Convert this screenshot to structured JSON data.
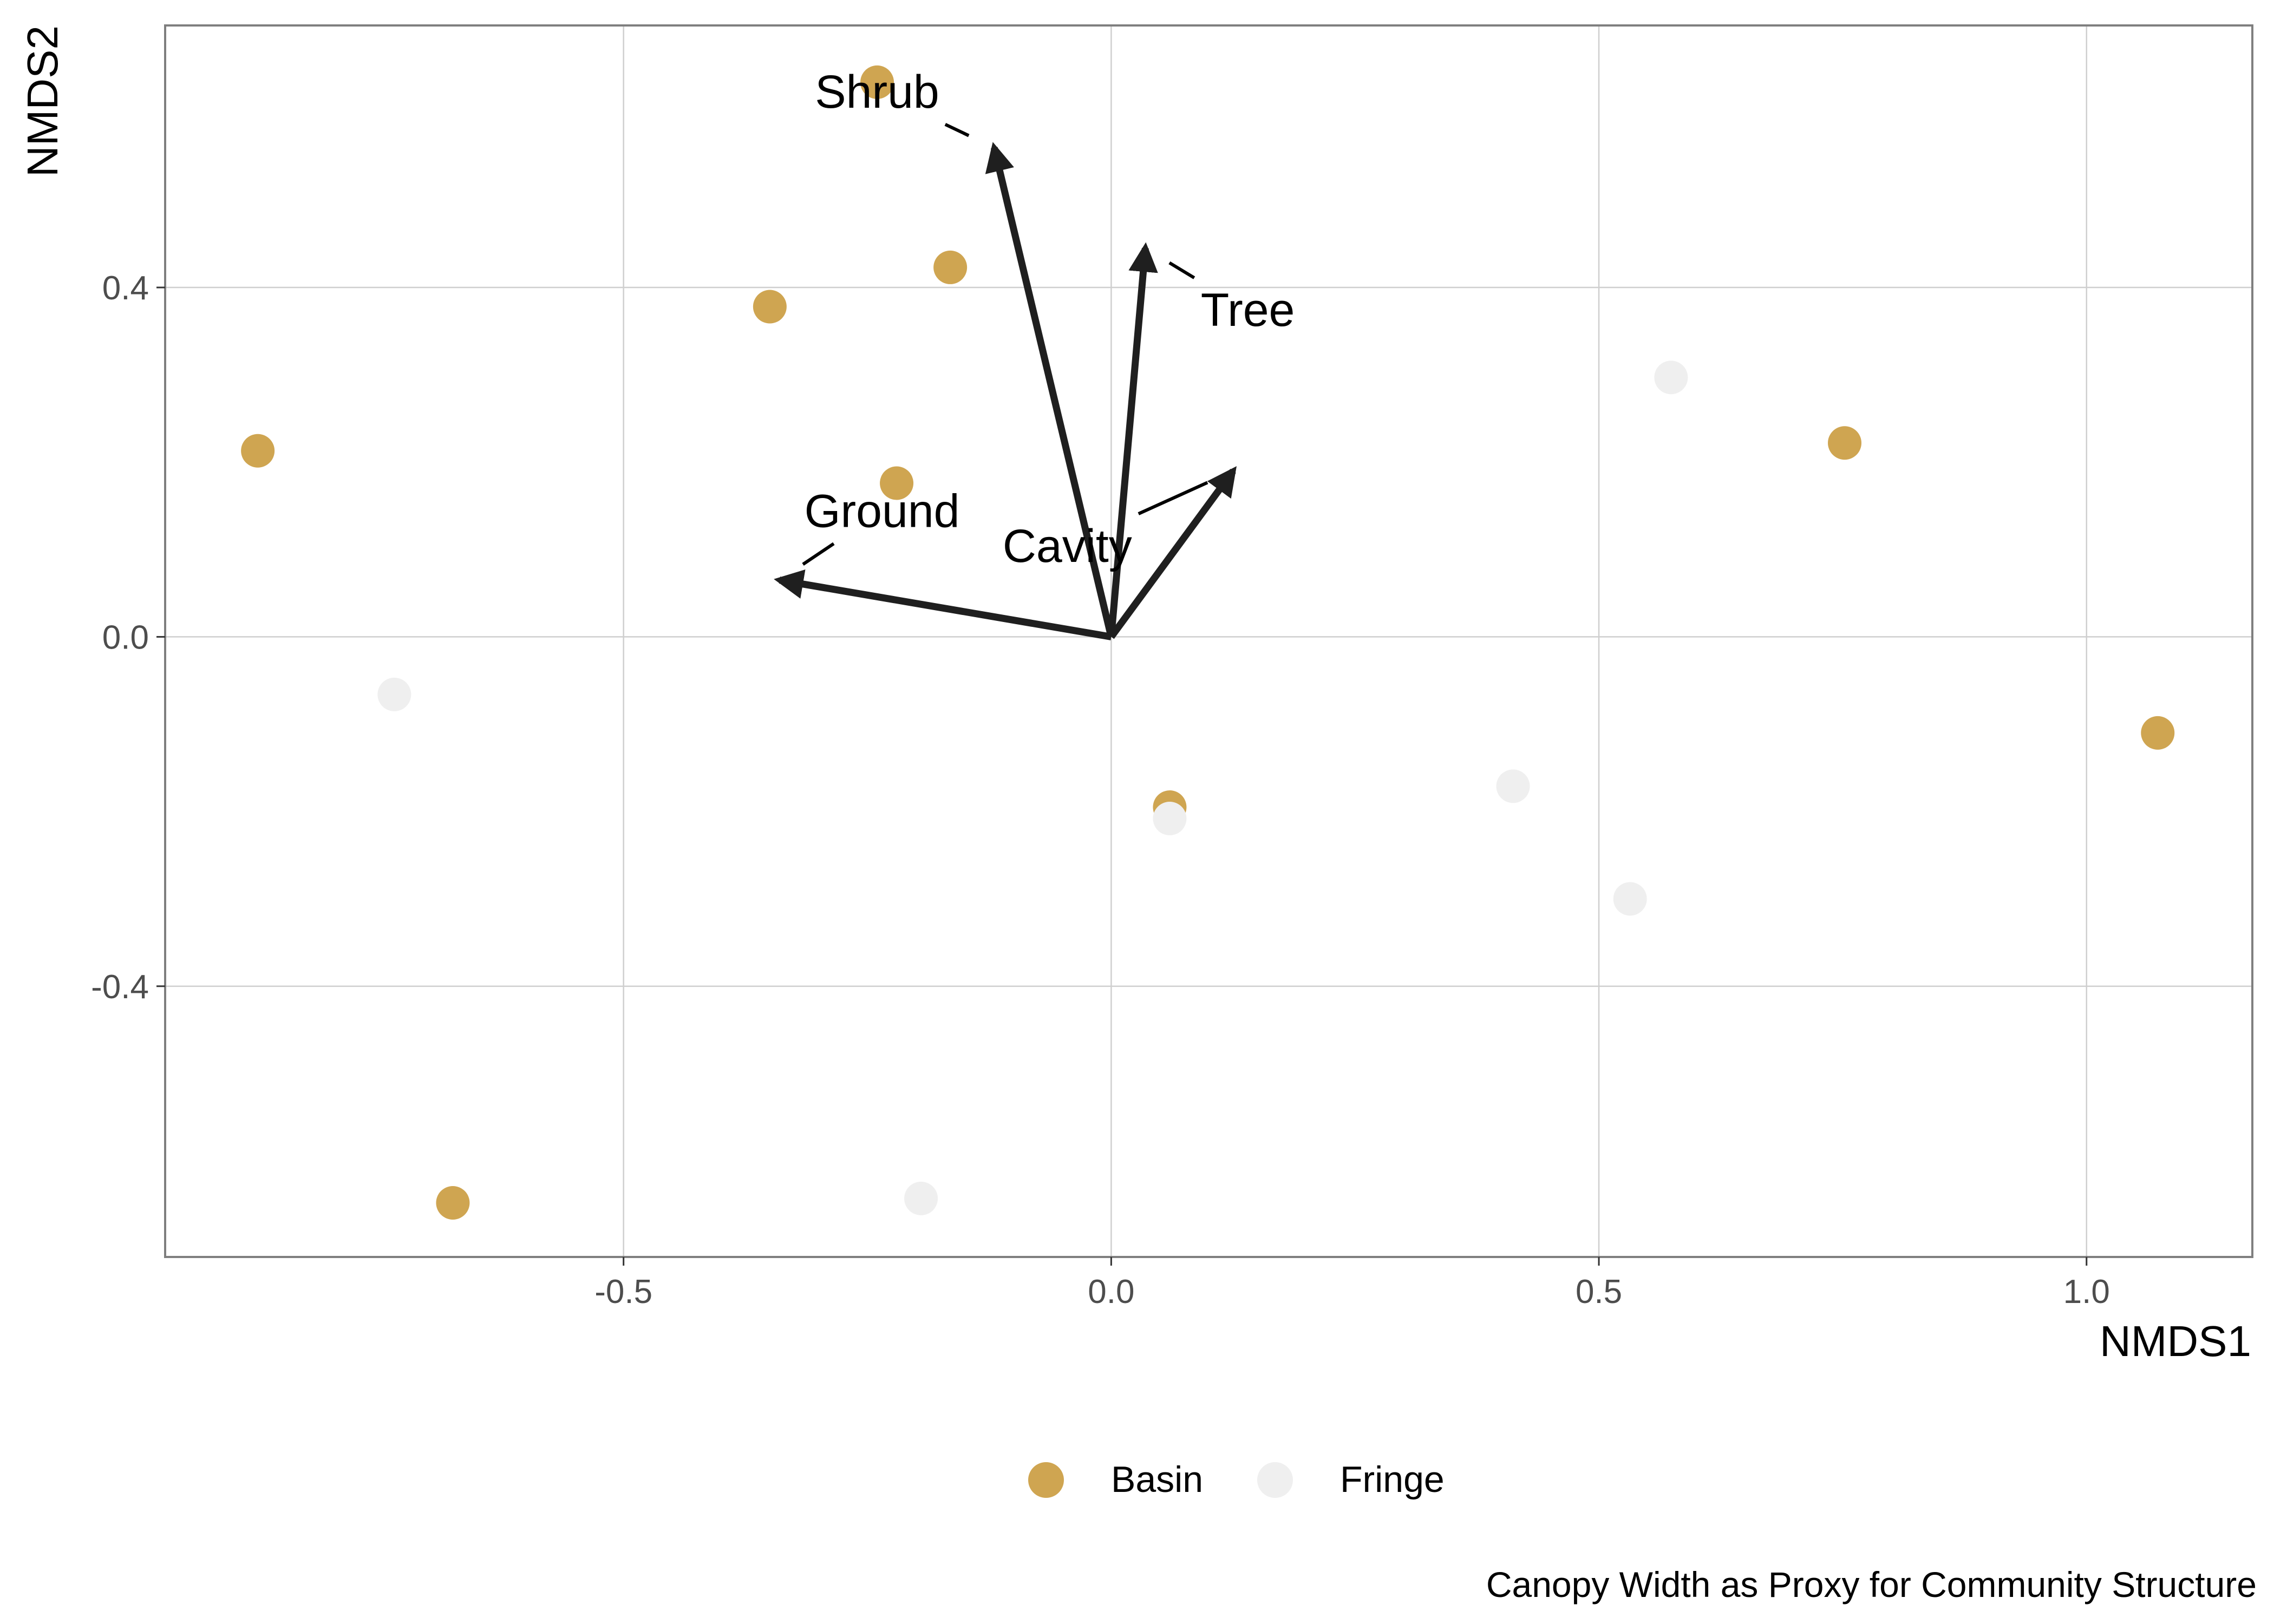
{
  "chart_data": {
    "type": "scatter",
    "title": "",
    "xlabel": "NMDS1",
    "ylabel": "NMDS2",
    "caption": "Canopy Width as Proxy for Community Structure",
    "xlim": [
      -0.97,
      1.17
    ],
    "ylim": [
      -0.71,
      0.7
    ],
    "x_ticks": [
      -0.5,
      0.0,
      0.5,
      1.0
    ],
    "x_tick_labels": [
      "-0.5",
      "0.0",
      "0.5",
      "1.0"
    ],
    "y_ticks": [
      -0.4,
      0.0,
      0.4
    ],
    "y_tick_labels": [
      "-0.4",
      "0.0",
      "0.4"
    ],
    "grid": true,
    "legend_position": "bottom",
    "colors": {
      "Basin": "#cfa551",
      "Fringe": "#efefef",
      "vector": "#1f1f1f",
      "grid": "#cfcfcf",
      "panel_border": "#7f7f7f"
    },
    "series": [
      {
        "name": "Basin",
        "points": [
          {
            "x": -0.24,
            "y": 0.635
          },
          {
            "x": -0.165,
            "y": 0.423
          },
          {
            "x": -0.35,
            "y": 0.378
          },
          {
            "x": -0.875,
            "y": 0.213
          },
          {
            "x": -0.22,
            "y": 0.176
          },
          {
            "x": 0.06,
            "y": -0.195
          },
          {
            "x": -0.675,
            "y": -0.648
          },
          {
            "x": 0.752,
            "y": 0.222
          },
          {
            "x": 1.073,
            "y": -0.11
          }
        ]
      },
      {
        "name": "Fringe",
        "points": [
          {
            "x": 0.574,
            "y": 0.297
          },
          {
            "x": -0.735,
            "y": -0.066
          },
          {
            "x": 0.06,
            "y": -0.208
          },
          {
            "x": 0.412,
            "y": -0.171
          },
          {
            "x": 0.532,
            "y": -0.3
          },
          {
            "x": -0.195,
            "y": -0.643
          }
        ]
      }
    ],
    "vectors": [
      {
        "name": "Shrub",
        "x": -0.12,
        "y": 0.56,
        "label_x": -0.24,
        "label_y": 0.62
      },
      {
        "name": "Tree",
        "x": 0.035,
        "y": 0.445,
        "label_x": 0.14,
        "label_y": 0.37
      },
      {
        "name": "Ground",
        "x": -0.34,
        "y": 0.065,
        "label_x": -0.235,
        "label_y": 0.14
      },
      {
        "name": "Cavity",
        "x": 0.125,
        "y": 0.19,
        "label_x": -0.045,
        "label_y": 0.1
      }
    ]
  }
}
